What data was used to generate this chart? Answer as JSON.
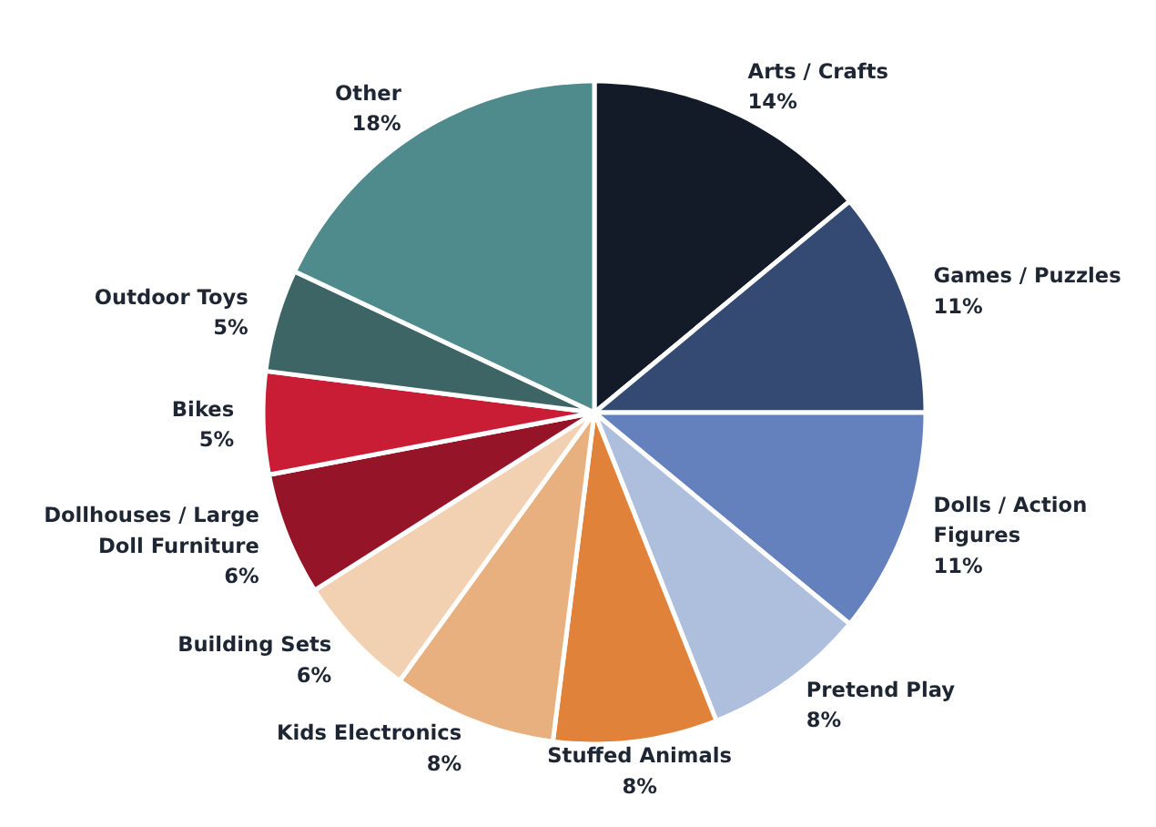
{
  "chart_data": {
    "type": "pie",
    "categories": [
      "Arts / Crafts",
      "Games / Puzzles",
      "Dolls / Action Figures",
      "Pretend Play",
      "Stuffed Animals",
      "Kids Electronics",
      "Building Sets",
      "Dollhouses / Large Doll Furniture",
      "Bikes",
      "Outdoor Toys",
      "Other"
    ],
    "values": [
      14,
      11,
      11,
      8,
      8,
      8,
      6,
      6,
      5,
      5,
      18
    ],
    "value_labels": [
      "14%",
      "11%",
      "11%",
      "8%",
      "8%",
      "8%",
      "6%",
      "6%",
      "5%",
      "5%",
      "18%"
    ],
    "colors": [
      "#131a28",
      "#344a72",
      "#6480bd",
      "#aebfdd",
      "#e0823a",
      "#e9b07f",
      "#f2d0b2",
      "#951428",
      "#c81d35",
      "#3e6566",
      "#4f8a8d"
    ],
    "legend": false
  }
}
